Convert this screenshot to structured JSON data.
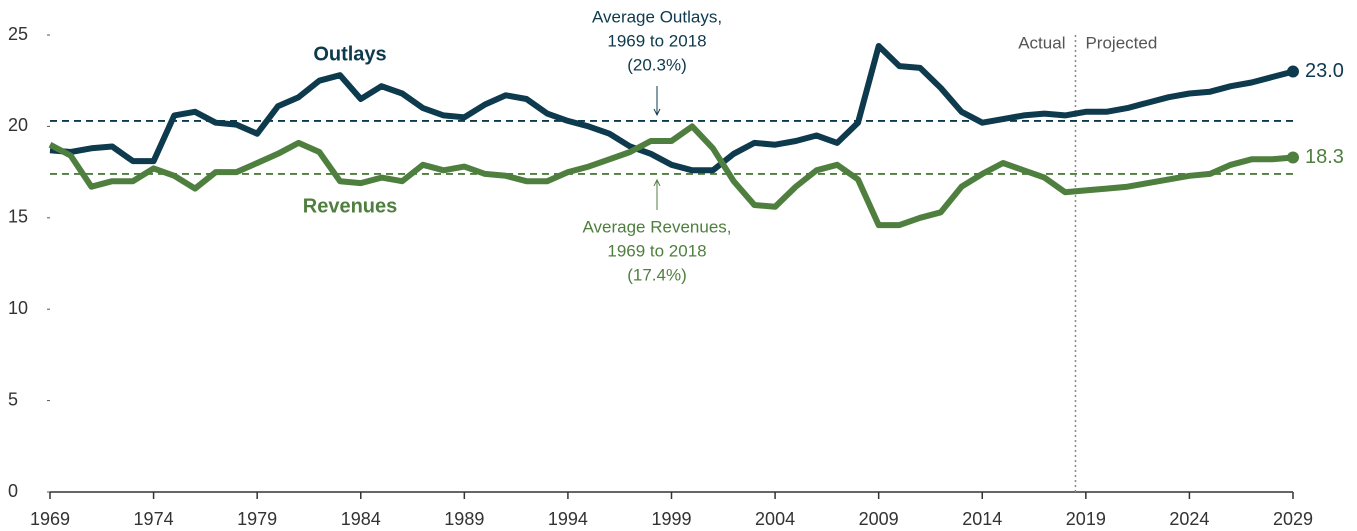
{
  "chart_data": {
    "type": "line",
    "x": [
      1969,
      1970,
      1971,
      1972,
      1973,
      1974,
      1975,
      1976,
      1977,
      1978,
      1979,
      1980,
      1981,
      1982,
      1983,
      1984,
      1985,
      1986,
      1987,
      1988,
      1989,
      1990,
      1991,
      1992,
      1993,
      1994,
      1995,
      1996,
      1997,
      1998,
      1999,
      2000,
      2001,
      2002,
      2003,
      2004,
      2005,
      2006,
      2007,
      2008,
      2009,
      2010,
      2011,
      2012,
      2013,
      2014,
      2015,
      2016,
      2017,
      2018,
      2019,
      2020,
      2021,
      2022,
      2023,
      2024,
      2025,
      2026,
      2027,
      2028,
      2029
    ],
    "series": [
      {
        "name": "Outlays",
        "color": "#0e3a4e",
        "values": [
          18.7,
          18.6,
          18.8,
          18.9,
          18.1,
          18.1,
          20.6,
          20.8,
          20.2,
          20.1,
          19.6,
          21.1,
          21.6,
          22.5,
          22.8,
          21.5,
          22.2,
          21.8,
          21.0,
          20.6,
          20.5,
          21.2,
          21.7,
          21.5,
          20.7,
          20.3,
          20.0,
          19.6,
          18.9,
          18.5,
          17.9,
          17.6,
          17.6,
          18.5,
          19.1,
          19.0,
          19.2,
          19.5,
          19.1,
          20.2,
          24.4,
          23.3,
          23.2,
          22.1,
          20.8,
          20.2,
          20.4,
          20.6,
          20.7,
          20.6,
          20.8,
          20.8,
          21.0,
          21.3,
          21.6,
          21.8,
          21.9,
          22.2,
          22.4,
          22.7,
          23.0
        ],
        "value_labels": [
          null,
          null,
          null,
          null,
          null,
          null,
          null,
          null,
          null,
          null,
          null,
          null,
          null,
          null,
          null,
          null,
          null,
          null,
          null,
          null,
          null,
          null,
          null,
          null,
          null,
          null,
          null,
          null,
          null,
          null,
          null,
          null,
          null,
          null,
          null,
          null,
          null,
          null,
          null,
          null,
          null,
          null,
          null,
          null,
          null,
          null,
          null,
          null,
          null,
          null,
          null,
          null,
          null,
          null,
          null,
          null,
          null,
          null,
          null,
          null,
          "23.0"
        ]
      },
      {
        "name": "Revenues",
        "color": "#4f7f3f",
        "values": [
          19.0,
          18.4,
          16.7,
          17.0,
          17.0,
          17.7,
          17.3,
          16.6,
          17.5,
          17.5,
          18.0,
          18.5,
          19.1,
          18.6,
          17.0,
          16.9,
          17.2,
          17.0,
          17.9,
          17.6,
          17.8,
          17.4,
          17.3,
          17.0,
          17.0,
          17.5,
          17.8,
          18.2,
          18.6,
          19.2,
          19.2,
          20.0,
          18.8,
          17.0,
          15.7,
          15.6,
          16.7,
          17.6,
          17.9,
          17.1,
          14.6,
          14.6,
          15.0,
          15.3,
          16.7,
          17.4,
          18.0,
          17.6,
          17.2,
          16.4,
          16.5,
          16.6,
          16.7,
          16.9,
          17.1,
          17.3,
          17.4,
          17.9,
          18.2,
          18.2,
          18.3
        ],
        "value_labels": [
          null,
          null,
          null,
          null,
          null,
          null,
          null,
          null,
          null,
          null,
          null,
          null,
          null,
          null,
          null,
          null,
          null,
          null,
          null,
          null,
          null,
          null,
          null,
          null,
          null,
          null,
          null,
          null,
          null,
          null,
          null,
          null,
          null,
          null,
          null,
          null,
          null,
          null,
          null,
          null,
          null,
          null,
          null,
          null,
          null,
          null,
          null,
          null,
          null,
          null,
          null,
          null,
          null,
          null,
          null,
          null,
          null,
          null,
          null,
          null,
          "18.3"
        ]
      }
    ],
    "reference_lines": [
      {
        "value": 20.3,
        "color": "#0e3a4e",
        "label": [
          "Average Outlays,",
          "1969 to 2018",
          "(20.3%)"
        ]
      },
      {
        "value": 17.4,
        "color": "#4f7f3f",
        "label": [
          "Average Revenues,",
          "1969 to 2018",
          "(17.4%)"
        ]
      }
    ],
    "divider": {
      "x": 2018.5,
      "labels": [
        "Actual",
        "Projected"
      ]
    },
    "xlim": [
      1969,
      2029
    ],
    "xticks": [
      1969,
      1974,
      1979,
      1984,
      1989,
      1994,
      1999,
      2004,
      2009,
      2014,
      2019,
      2024,
      2029
    ],
    "ylim": [
      0,
      25
    ],
    "yticks": [
      0,
      5,
      10,
      15,
      20,
      25
    ]
  }
}
